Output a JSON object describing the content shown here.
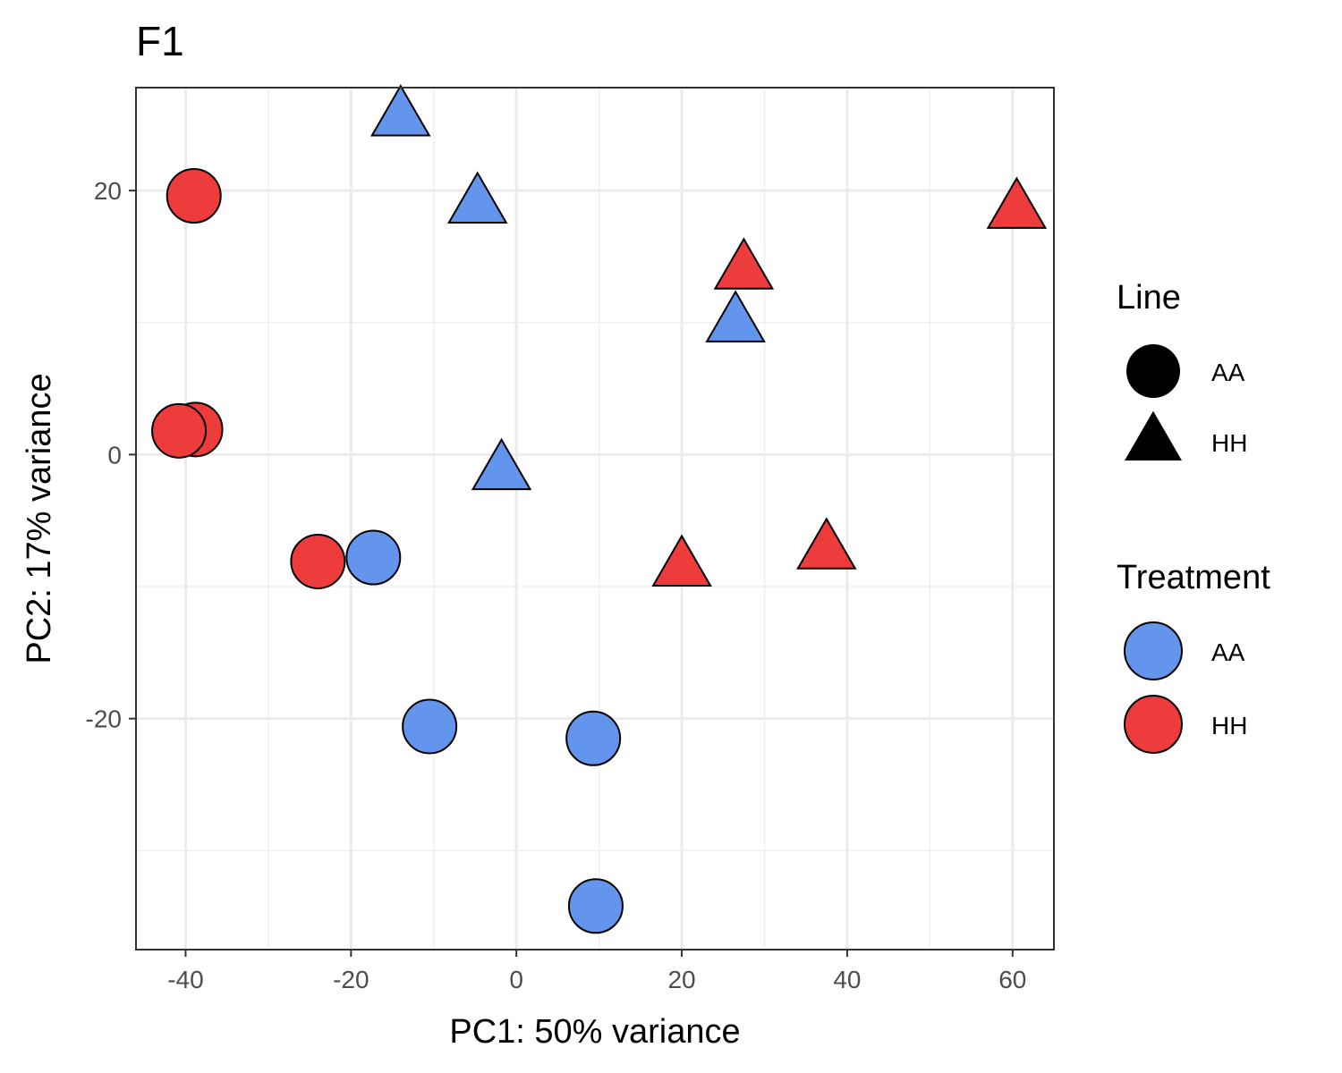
{
  "chart_data": {
    "type": "scatter",
    "title": "F1",
    "xlabel": "PC1: 50% variance",
    "ylabel": "PC2: 17% variance",
    "xlim": [
      -46,
      65
    ],
    "ylim": [
      -37.5,
      27.8
    ],
    "x_ticks": [
      -40,
      -20,
      0,
      20,
      40,
      60
    ],
    "x_tick_labels": [
      "-40",
      "-20",
      "0",
      "20",
      "40",
      "60"
    ],
    "y_ticks": [
      -20,
      0,
      20
    ],
    "y_tick_labels": [
      "-20",
      "0",
      "20"
    ],
    "grid": true,
    "legend_placement": "right",
    "legends": [
      {
        "title": "Line",
        "entries": [
          {
            "label": "AA",
            "shape": "circle"
          },
          {
            "label": "HH",
            "shape": "triangle"
          }
        ]
      },
      {
        "title": "Treatment",
        "entries": [
          {
            "label": "AA",
            "color": "#6495ED"
          },
          {
            "label": "HH",
            "color": "#EE3B3B"
          }
        ]
      }
    ],
    "colors": {
      "AA": "#6495ED",
      "HH": "#EE3B3B"
    },
    "points": [
      {
        "x": -14.0,
        "y": 25.6,
        "line": "HH",
        "treatment": "AA"
      },
      {
        "x": -4.7,
        "y": 19.0,
        "line": "HH",
        "treatment": "AA"
      },
      {
        "x": 26.5,
        "y": 10.0,
        "line": "HH",
        "treatment": "AA"
      },
      {
        "x": -1.8,
        "y": -1.2,
        "line": "HH",
        "treatment": "AA"
      },
      {
        "x": 60.5,
        "y": 18.6,
        "line": "HH",
        "treatment": "HH"
      },
      {
        "x": 27.5,
        "y": 14.0,
        "line": "HH",
        "treatment": "HH"
      },
      {
        "x": 20.0,
        "y": -8.5,
        "line": "HH",
        "treatment": "HH"
      },
      {
        "x": 37.5,
        "y": -7.2,
        "line": "HH",
        "treatment": "HH"
      },
      {
        "x": -39.0,
        "y": 19.6,
        "line": "AA",
        "treatment": "HH"
      },
      {
        "x": -38.8,
        "y": 1.9,
        "line": "AA",
        "treatment": "HH"
      },
      {
        "x": -40.8,
        "y": 1.8,
        "line": "AA",
        "treatment": "HH"
      },
      {
        "x": -24.0,
        "y": -8.1,
        "line": "AA",
        "treatment": "HH"
      },
      {
        "x": -17.3,
        "y": -7.8,
        "line": "AA",
        "treatment": "AA"
      },
      {
        "x": -10.5,
        "y": -20.6,
        "line": "AA",
        "treatment": "AA"
      },
      {
        "x": 9.3,
        "y": -21.5,
        "line": "AA",
        "treatment": "AA"
      },
      {
        "x": 9.6,
        "y": -34.2,
        "line": "AA",
        "treatment": "AA"
      }
    ]
  }
}
